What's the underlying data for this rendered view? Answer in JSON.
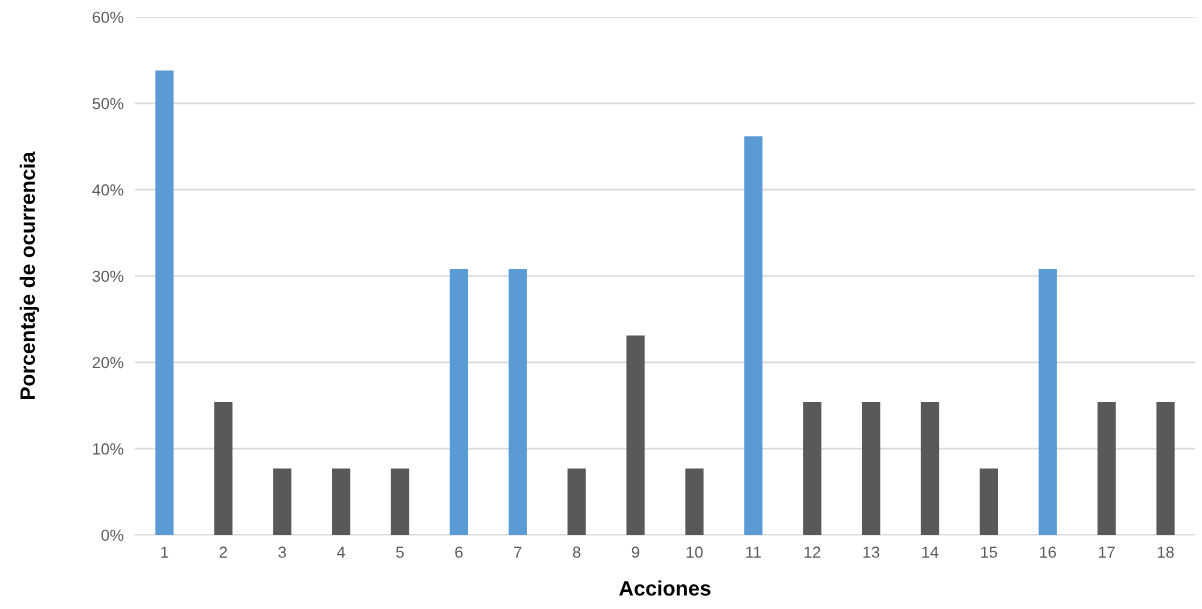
{
  "chart_data": {
    "type": "bar",
    "xlabel": "Acciones",
    "ylabel": "Porcentaje de ocurrencia",
    "categories": [
      "1",
      "2",
      "3",
      "4",
      "5",
      "6",
      "7",
      "8",
      "9",
      "10",
      "11",
      "12",
      "13",
      "14",
      "15",
      "16",
      "17",
      "18"
    ],
    "values": [
      53.8,
      15.4,
      7.7,
      7.7,
      7.7,
      30.8,
      30.8,
      7.7,
      23.1,
      7.7,
      46.2,
      15.4,
      15.4,
      15.4,
      7.7,
      30.8,
      15.4,
      15.4
    ],
    "colors": [
      "#5b9bd5",
      "#595959",
      "#595959",
      "#595959",
      "#595959",
      "#5b9bd5",
      "#5b9bd5",
      "#595959",
      "#595959",
      "#595959",
      "#5b9bd5",
      "#595959",
      "#595959",
      "#595959",
      "#595959",
      "#5b9bd5",
      "#595959",
      "#595959"
    ],
    "ylim": [
      0,
      60
    ],
    "yticks": [
      {
        "value": 0,
        "label": "0%"
      },
      {
        "value": 10,
        "label": "10%"
      },
      {
        "value": 20,
        "label": "20%"
      },
      {
        "value": 30,
        "label": "30%"
      },
      {
        "value": 40,
        "label": "40%"
      },
      {
        "value": 50,
        "label": "50%"
      },
      {
        "value": 60,
        "label": "60%"
      }
    ],
    "grid": "y",
    "legend": false
  }
}
